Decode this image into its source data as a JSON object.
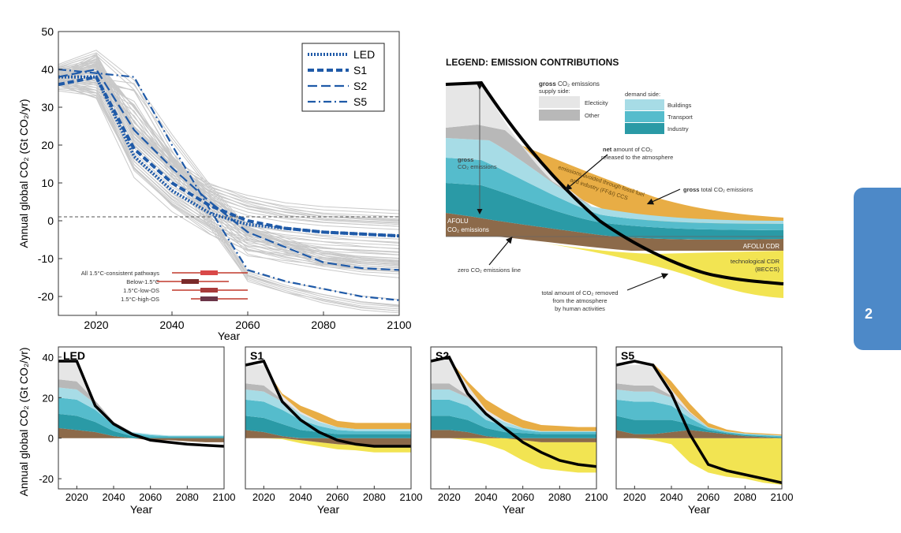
{
  "chapter_tab": "2",
  "legend_panel": {
    "title": "LEGEND: EMISSION CONTRIBUTIONS",
    "gross_supply_bold": "gross",
    "gross_supply_rest": "CO₂ emissions",
    "supply_side_label": "supply side:",
    "electricity_label": "Electicity",
    "other_label": "Other",
    "demand_side_label": "demand side:",
    "buildings_label": "Buildings",
    "transport_label": "Transport",
    "industry_label": "Industry",
    "net_bold": "net",
    "net_rest": "amount of CO₂",
    "net_line2": "released to the atmosphere",
    "gross_total_bold": "gross",
    "gross_total_rest": "total CO₂ emissions",
    "gross_em_bold": "gross",
    "gross_em_rest": "CO₂ emissions",
    "avoided_line1": "emissions avoided through fossil fuel",
    "avoided_line2": "and industry (FF&I) CCS",
    "afolu_emissions_line1": "AFOLU",
    "afolu_emissions_line2": "CO₂ emissions",
    "afolu_cdr": "AFOLU CDR",
    "tech_cdr_line1": "technological CDR",
    "tech_cdr_line2": "(BECCS)",
    "zero_line_label": "zero CO₂ emissions line",
    "removed_line1": "total amount of CO₂ removed",
    "removed_line2": "from the atmosphere",
    "removed_line3": "by human activities"
  },
  "colors": {
    "electricity": "#e6e6e6",
    "other": "#b8b8b8",
    "buildings": "#a7dce6",
    "transport": "#55bccc",
    "industry": "#2a9aa6",
    "afolu": "#8c6a4a",
    "ccs": "#e8ad45",
    "beccs": "#f2e452",
    "pathways": "#1f5aa8",
    "ensemble": "#c9c9c9",
    "chapter_tab": "#4d89c8"
  },
  "chart_data": [
    {
      "type": "line",
      "xlabel": "Year",
      "ylabel": "Annual global CO₂ (Gt CO₂/yr)",
      "xlim": [
        2010,
        2100
      ],
      "ylim": [
        -25,
        50
      ],
      "xticks": [
        2020,
        2040,
        2060,
        2080,
        2100
      ],
      "yticks": [
        50,
        40,
        30,
        20,
        10,
        0,
        -10,
        -20
      ],
      "legend_position": "top-right",
      "series": [
        {
          "name": "LED",
          "style": "dotted",
          "x": [
            2010,
            2020,
            2030,
            2040,
            2050,
            2060,
            2070,
            2080,
            2090,
            2100
          ],
          "y": [
            38,
            38,
            17,
            8,
            2,
            -1,
            -2,
            -3,
            -3.5,
            -4
          ]
        },
        {
          "name": "S1",
          "style": "dashed",
          "x": [
            2010,
            2020,
            2030,
            2040,
            2050,
            2060,
            2070,
            2080,
            2090,
            2100
          ],
          "y": [
            36,
            38,
            19,
            10,
            4,
            0,
            -2,
            -3,
            -3.5,
            -4
          ]
        },
        {
          "name": "S2",
          "style": "long-dash",
          "x": [
            2010,
            2020,
            2030,
            2040,
            2050,
            2060,
            2070,
            2080,
            2090,
            2100
          ],
          "y": [
            38,
            40,
            24,
            14,
            5,
            -3,
            -7,
            -11,
            -12.5,
            -13
          ]
        },
        {
          "name": "S5",
          "style": "dash-dot",
          "x": [
            2010,
            2020,
            2030,
            2040,
            2050,
            2060,
            2070,
            2080,
            2090,
            2100
          ],
          "y": [
            40,
            39,
            38,
            20,
            3,
            -13,
            -16,
            -18,
            -20,
            -21
          ]
        }
      ],
      "inset_ranges": {
        "labels": [
          "All 1.5°C-consistent pathways",
          "Below-1.5°C",
          "1.5°C-low-OS",
          "1.5°C-high-OS"
        ],
        "ranges": [
          [
            2040,
            2060
          ],
          [
            2036,
            2055
          ],
          [
            2040,
            2060
          ],
          [
            2045,
            2060
          ]
        ],
        "medians": [
          2050,
          2045,
          2050,
          2050
        ]
      }
    },
    {
      "type": "area",
      "title": "LED",
      "xlabel": "Year",
      "ylabel": "Annual global CO₂ (Gt CO₂/yr)",
      "xlim": [
        2010,
        2100
      ],
      "ylim": [
        -25,
        45
      ],
      "x": [
        2010,
        2020,
        2030,
        2040,
        2050,
        2060,
        2070,
        2080,
        2090,
        2100
      ],
      "layers": {
        "afolu": [
          5,
          4,
          3,
          1,
          0,
          -1,
          -1,
          -1.5,
          -2,
          -2
        ],
        "industry": [
          7,
          7,
          5,
          2.5,
          1,
          0.5,
          0.5,
          0.5,
          0.5,
          0.5
        ],
        "transport": [
          8,
          8,
          6,
          3,
          1.5,
          1,
          0.5,
          0.5,
          0.5,
          0.5
        ],
        "buildings": [
          5,
          5,
          3,
          1,
          0.5,
          0.5,
          0.3,
          0.3,
          0.3,
          0.3
        ],
        "other": [
          4,
          4,
          1.5,
          0.5,
          0,
          0,
          0,
          0,
          0,
          0
        ],
        "electricity": [
          9,
          10,
          0,
          0,
          0,
          0,
          0,
          0,
          0,
          0
        ],
        "ccs": [
          0,
          0,
          0,
          0,
          0,
          0,
          0,
          0,
          0,
          0
        ],
        "beccs": [
          0,
          0,
          0,
          0,
          0,
          0,
          0,
          0,
          0,
          0
        ]
      },
      "net": [
        38,
        38,
        16,
        7,
        2,
        -1,
        -2,
        -3,
        -3.5,
        -4
      ]
    },
    {
      "type": "area",
      "title": "S1",
      "xlabel": "Year",
      "xlim": [
        2010,
        2100
      ],
      "ylim": [
        -25,
        45
      ],
      "x": [
        2010,
        2020,
        2030,
        2040,
        2050,
        2060,
        2070,
        2080,
        2090,
        2100
      ],
      "layers": {
        "afolu": [
          4,
          3,
          1,
          -1,
          -2,
          -3,
          -3.5,
          -4,
          -4,
          -4
        ],
        "industry": [
          7,
          7,
          6,
          4,
          3,
          2,
          2,
          2,
          2,
          2
        ],
        "transport": [
          8,
          8,
          7,
          5,
          3,
          2,
          1.5,
          1.5,
          1.5,
          1.5
        ],
        "buildings": [
          5,
          5,
          4,
          3,
          2,
          1.5,
          1,
          1,
          1,
          1
        ],
        "other": [
          3,
          3,
          1,
          0,
          0,
          0,
          0,
          0,
          0,
          0
        ],
        "electricity": [
          9,
          10,
          2,
          1,
          0.5,
          0,
          0,
          0,
          0,
          0
        ],
        "ccs": [
          0,
          0,
          1,
          3,
          4,
          3,
          3,
          3,
          3,
          3
        ],
        "beccs": [
          0,
          0,
          -0.5,
          -1.5,
          -2,
          -2.5,
          -2.5,
          -3,
          -3,
          -3
        ]
      },
      "net": [
        36,
        38,
        18,
        9,
        3,
        -1,
        -3,
        -4,
        -4,
        -4
      ]
    },
    {
      "type": "area",
      "title": "S2",
      "xlabel": "Year",
      "xlim": [
        2010,
        2100
      ],
      "ylim": [
        -25,
        45
      ],
      "x": [
        2010,
        2020,
        2030,
        2040,
        2050,
        2060,
        2070,
        2080,
        2090,
        2100
      ],
      "layers": {
        "afolu": [
          4,
          4,
          3,
          1,
          0,
          -1,
          -2,
          -2,
          -2,
          -2
        ],
        "industry": [
          7,
          7,
          6,
          4,
          3,
          2.5,
          2,
          2,
          2,
          2
        ],
        "transport": [
          8,
          8,
          7,
          4,
          3,
          1.5,
          1,
          1,
          1,
          1
        ],
        "buildings": [
          5,
          5,
          4,
          3,
          2,
          1,
          0.5,
          0.5,
          0.5,
          0.5
        ],
        "other": [
          3,
          3,
          1,
          0,
          0,
          0,
          0,
          0,
          0,
          0
        ],
        "electricity": [
          11,
          12,
          5,
          2,
          0.5,
          0,
          0,
          0,
          0,
          0
        ],
        "ccs": [
          0,
          0,
          2,
          5,
          5,
          4,
          3,
          2.5,
          2,
          2
        ],
        "beccs": [
          0,
          0,
          -1,
          -3,
          -6,
          -10,
          -13,
          -14,
          -15,
          -15
        ]
      },
      "net": [
        38,
        40,
        22,
        12,
        5,
        -2,
        -7,
        -11,
        -13,
        -14
      ]
    },
    {
      "type": "area",
      "title": "S5",
      "xlabel": "Year",
      "xlim": [
        2010,
        2100
      ],
      "ylim": [
        -25,
        45
      ],
      "x": [
        2010,
        2020,
        2030,
        2040,
        2050,
        2060,
        2070,
        2080,
        2090,
        2100
      ],
      "layers": {
        "afolu": [
          4,
          2,
          2,
          3,
          4,
          3,
          2,
          1,
          0.5,
          0
        ],
        "industry": [
          7,
          7,
          7,
          6,
          3,
          1,
          0.5,
          0.5,
          0.5,
          0.5
        ],
        "transport": [
          8,
          9,
          9,
          7,
          3,
          1,
          0.5,
          0.5,
          0.5,
          0.5
        ],
        "buildings": [
          5,
          5,
          5,
          4,
          2,
          0.5,
          0.3,
          0.3,
          0.3,
          0.3
        ],
        "other": [
          3,
          3,
          3,
          1,
          0.5,
          0,
          0,
          0,
          0,
          0
        ],
        "electricity": [
          9,
          10,
          11,
          3,
          0.5,
          0,
          0,
          0,
          0,
          0
        ],
        "ccs": [
          0,
          0,
          0,
          4,
          4,
          2,
          1,
          0.5,
          0.5,
          0.5
        ],
        "beccs": [
          0,
          0,
          -1,
          -3,
          -12,
          -17,
          -19,
          -20,
          -22,
          -23
        ]
      },
      "net": [
        36,
        38,
        36,
        22,
        2,
        -13,
        -16,
        -18,
        -20,
        -22
      ]
    }
  ]
}
